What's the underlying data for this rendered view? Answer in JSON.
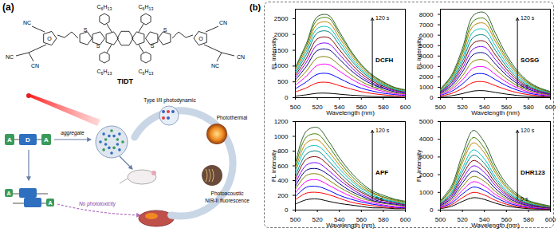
{
  "panel_a": {
    "label": "(a)",
    "molecule": {
      "name": "TIDT",
      "side_chains": [
        "C6H13",
        "C6H13",
        "C6H13",
        "C6H13"
      ],
      "heteroatoms": [
        "S",
        "S",
        "S",
        "S"
      ],
      "left_end_group": [
        "NC",
        "NC",
        "CN",
        "O"
      ],
      "right_end_group": [
        "CN",
        "CN",
        "NC",
        "O"
      ]
    },
    "schematic": {
      "therapies": [
        "Type I/II photodynamic",
        "Photothermal",
        "Photoacoustic",
        "NIR-II fluorescence"
      ],
      "monomer": [
        "A",
        "D",
        "A"
      ],
      "dimer": [
        "A",
        "A"
      ],
      "assembly": "aggregate",
      "safety": "No phototoxicity"
    }
  },
  "panel_b": {
    "label": "(b)"
  },
  "chart_data": [
    {
      "type": "line",
      "title": "DCFH",
      "x_label": "Wavelength (nm)",
      "y_label": "FL intensity",
      "annotations": [
        "0 s",
        "120 s"
      ],
      "x": [
        500,
        510,
        520,
        530,
        540,
        550,
        560,
        570,
        580,
        590,
        600
      ],
      "xlim": [
        500,
        600
      ],
      "xticks": [
        500,
        520,
        540,
        560,
        580,
        600
      ],
      "ylim": [
        0,
        2800
      ],
      "yticks": [
        0,
        500,
        1000,
        1500,
        2000,
        2500
      ],
      "series": [
        {
          "color": "#000000",
          "values": [
            50,
            90,
            140,
            140,
            110,
            80,
            60,
            40,
            30,
            20,
            10
          ]
        },
        {
          "color": "#ff0000",
          "values": [
            180,
            310,
            470,
            480,
            380,
            280,
            190,
            130,
            90,
            60,
            50
          ]
        },
        {
          "color": "#0000ff",
          "values": [
            280,
            500,
            740,
            760,
            610,
            440,
            300,
            210,
            140,
            100,
            70
          ]
        },
        {
          "color": "#ff00ff",
          "values": [
            390,
            680,
            1020,
            1050,
            840,
            610,
            420,
            290,
            200,
            130,
            100
          ]
        },
        {
          "color": "#808000",
          "values": [
            470,
            840,
            1260,
            1280,
            1030,
            740,
            510,
            350,
            240,
            160,
            120
          ]
        },
        {
          "color": "#000080",
          "values": [
            560,
            990,
            1490,
            1520,
            1220,
            880,
            610,
            420,
            290,
            190,
            140
          ]
        },
        {
          "color": "#8000ff",
          "values": [
            630,
            1120,
            1670,
            1710,
            1370,
            990,
            680,
            470,
            320,
            220,
            160
          ]
        },
        {
          "color": "#800000",
          "values": [
            700,
            1240,
            1860,
            1900,
            1520,
            1100,
            760,
            520,
            360,
            240,
            180
          ]
        },
        {
          "color": "#008080",
          "values": [
            770,
            1360,
            2050,
            2090,
            1670,
            1210,
            840,
            570,
            400,
            260,
            200
          ]
        },
        {
          "color": "#00c0c0",
          "values": [
            820,
            1460,
            2190,
            2230,
            1790,
            1290,
            890,
            610,
            420,
            280,
            210
          ]
        },
        {
          "color": "#c08000",
          "values": [
            880,
            1550,
            2330,
            2380,
            1900,
            1380,
            950,
            650,
            450,
            300,
            230
          ]
        },
        {
          "color": "#408000",
          "values": [
            930,
            1640,
            2460,
            2520,
            2010,
            1460,
            1010,
            690,
            480,
            320,
            240
          ]
        },
        {
          "color": "#306030",
          "values": [
            960,
            1710,
            2560,
            2610,
            2090,
            1510,
            1050,
            720,
            500,
            330,
            250
          ]
        }
      ]
    },
    {
      "type": "line",
      "title": "SOSG",
      "x_label": "Wavelength (nm)",
      "y_label": "FL intensity",
      "annotations": [
        "0 s",
        "120 s"
      ],
      "x": [
        500,
        510,
        520,
        530,
        540,
        550,
        560,
        570,
        580,
        590,
        600
      ],
      "xlim": [
        500,
        600
      ],
      "xticks": [
        500,
        520,
        540,
        560,
        580,
        600
      ],
      "ylim": [
        0,
        8500
      ],
      "yticks": [
        0,
        1000,
        2000,
        3000,
        4000,
        5000,
        6000,
        7000,
        8000
      ],
      "series": [
        {
          "color": "#000000",
          "values": [
            70,
            180,
            390,
            640,
            670,
            500,
            340,
            210,
            130,
            80,
            50
          ]
        },
        {
          "color": "#ff0000",
          "values": [
            160,
            400,
            880,
            1470,
            1520,
            1150,
            770,
            480,
            290,
            180,
            110
          ]
        },
        {
          "color": "#0000ff",
          "values": [
            240,
            600,
            1320,
            2210,
            2280,
            1730,
            1150,
            720,
            430,
            260,
            170
          ]
        },
        {
          "color": "#ff00ff",
          "values": [
            310,
            780,
            1710,
            2850,
            2950,
            2230,
            1490,
            930,
            560,
            340,
            220
          ]
        },
        {
          "color": "#808000",
          "values": [
            380,
            950,
            2090,
            3500,
            3610,
            2740,
            1820,
            1140,
            680,
            420,
            270
          ]
        },
        {
          "color": "#000080",
          "values": [
            450,
            1130,
            2480,
            4140,
            4280,
            3240,
            2160,
            1350,
            810,
            500,
            320
          ]
        },
        {
          "color": "#8000ff",
          "values": [
            510,
            1280,
            2810,
            4690,
            4850,
            3670,
            2450,
            1530,
            920,
            560,
            360
          ]
        },
        {
          "color": "#800000",
          "values": [
            570,
            1430,
            3140,
            5240,
            5420,
            4100,
            2740,
            1710,
            1030,
            630,
            400
          ]
        },
        {
          "color": "#008080",
          "values": [
            630,
            1580,
            3470,
            5800,
            5990,
            4540,
            3020,
            1890,
            1130,
            690,
            440
          ]
        },
        {
          "color": "#00c0c0",
          "values": [
            690,
            1730,
            3800,
            6350,
            6560,
            4970,
            3310,
            2070,
            1240,
            760,
            480
          ]
        },
        {
          "color": "#c08000",
          "values": [
            750,
            1880,
            4130,
            6900,
            7130,
            5400,
            3600,
            2250,
            1350,
            830,
            530
          ]
        },
        {
          "color": "#408000",
          "values": [
            800,
            2000,
            4400,
            7360,
            7600,
            5760,
            3840,
            2400,
            1440,
            880,
            560
          ]
        },
        {
          "color": "#306030",
          "values": [
            860,
            2150,
            4730,
            7910,
            8170,
            6190,
            4130,
            2580,
            1550,
            950,
            600
          ]
        }
      ]
    },
    {
      "type": "line",
      "title": "APF",
      "x_label": "Wavelength (nm)",
      "y_label": "FL intensity",
      "annotations": [
        "0 s",
        "120 s"
      ],
      "x": [
        500,
        510,
        520,
        530,
        540,
        550,
        560,
        570,
        580,
        590,
        600
      ],
      "xlim": [
        500,
        600
      ],
      "xticks": [
        500,
        520,
        540,
        560,
        580,
        600
      ],
      "ylim": [
        0,
        1200
      ],
      "yticks": [
        0,
        200,
        400,
        600,
        800,
        1000,
        1200
      ],
      "series": [
        {
          "color": "#000000",
          "values": [
            80,
            140,
            150,
            120,
            90,
            70,
            50,
            30,
            30,
            20,
            20
          ]
        },
        {
          "color": "#ff0000",
          "values": [
            140,
            230,
            240,
            210,
            160,
            110,
            80,
            60,
            40,
            30,
            30
          ]
        },
        {
          "color": "#0000ff",
          "values": [
            180,
            310,
            320,
            270,
            200,
            150,
            110,
            80,
            60,
            40,
            30
          ]
        },
        {
          "color": "#ff00ff",
          "values": [
            230,
            390,
            410,
            340,
            260,
            190,
            130,
            100,
            70,
            50,
            40
          ]
        },
        {
          "color": "#808000",
          "values": [
            280,
            470,
            490,
            410,
            310,
            230,
            160,
            120,
            90,
            70,
            50
          ]
        },
        {
          "color": "#000080",
          "values": [
            320,
            540,
            560,
            480,
            360,
            260,
            190,
            130,
            100,
            80,
            60
          ]
        },
        {
          "color": "#8000ff",
          "values": [
            360,
            610,
            640,
            540,
            410,
            300,
            210,
            150,
            110,
            90,
            70
          ]
        },
        {
          "color": "#800000",
          "values": [
            410,
            690,
            720,
            610,
            460,
            330,
            240,
            170,
            130,
            100,
            70
          ]
        },
        {
          "color": "#008080",
          "values": [
            450,
            760,
            800,
            670,
            510,
            370,
            260,
            190,
            140,
            110,
            80
          ]
        },
        {
          "color": "#00c0c0",
          "values": [
            500,
            840,
            870,
            740,
            560,
            410,
            290,
            210,
            150,
            120,
            90
          ]
        },
        {
          "color": "#c08000",
          "values": [
            540,
            910,
            950,
            800,
            610,
            440,
            310,
            230,
            170,
            130,
            100
          ]
        },
        {
          "color": "#408000",
          "values": [
            580,
            990,
            1030,
            870,
            660,
            480,
            340,
            240,
            180,
            140,
            110
          ]
        },
        {
          "color": "#306030",
          "values": [
            630,
            1070,
            1120,
            940,
            710,
            520,
            370,
            260,
            200,
            150,
            120
          ]
        }
      ]
    },
    {
      "type": "line",
      "title": "DHR123",
      "x_label": "Wavelength (nm)",
      "y_label": "FL intensity",
      "annotations": [
        "0 s",
        "120 s"
      ],
      "x": [
        500,
        510,
        520,
        530,
        540,
        550,
        560,
        570,
        580,
        590,
        600
      ],
      "xlim": [
        500,
        600
      ],
      "xticks": [
        500,
        520,
        540,
        560,
        580,
        600
      ],
      "ylim": [
        0,
        5000
      ],
      "yticks": [
        0,
        1000,
        2000,
        3000,
        4000,
        5000
      ],
      "series": [
        {
          "color": "#000000",
          "values": [
            80,
            210,
            490,
            700,
            600,
            390,
            230,
            140,
            80,
            60,
            40
          ]
        },
        {
          "color": "#ff0000",
          "values": [
            120,
            300,
            700,
            1000,
            850,
            550,
            330,
            200,
            120,
            80,
            50
          ]
        },
        {
          "color": "#0000ff",
          "values": [
            160,
            390,
            910,
            1300,
            1110,
            720,
            430,
            260,
            160,
            100,
            70
          ]
        },
        {
          "color": "#ff00ff",
          "values": [
            190,
            480,
            1120,
            1600,
            1360,
            880,
            530,
            320,
            190,
            130,
            80
          ]
        },
        {
          "color": "#808000",
          "values": [
            230,
            570,
            1330,
            1900,
            1620,
            1050,
            630,
            380,
            230,
            150,
            100
          ]
        },
        {
          "color": "#000080",
          "values": [
            260,
            660,
            1540,
            2200,
            1870,
            1210,
            730,
            440,
            260,
            180,
            110
          ]
        },
        {
          "color": "#8000ff",
          "values": [
            300,
            750,
            1750,
            2500,
            2130,
            1380,
            830,
            500,
            300,
            200,
            130
          ]
        },
        {
          "color": "#800000",
          "values": [
            340,
            840,
            1960,
            2800,
            2380,
            1540,
            920,
            560,
            340,
            220,
            140
          ]
        },
        {
          "color": "#008080",
          "values": [
            370,
            930,
            2170,
            3100,
            2640,
            1710,
            1020,
            620,
            370,
            250,
            160
          ]
        },
        {
          "color": "#00c0c0",
          "values": [
            410,
            1020,
            2380,
            3400,
            2890,
            1870,
            1120,
            680,
            410,
            270,
            170
          ]
        },
        {
          "color": "#c08000",
          "values": [
            460,
            1140,
            2660,
            3800,
            3230,
            2090,
            1250,
            760,
            460,
            300,
            190
          ]
        },
        {
          "color": "#408000",
          "values": [
            490,
            1230,
            2870,
            4100,
            3490,
            2260,
            1350,
            820,
            490,
            330,
            210
          ]
        },
        {
          "color": "#306030",
          "values": [
            540,
            1350,
            3150,
            4500,
            3830,
            2480,
            1490,
            900,
            540,
            360,
            230
          ]
        }
      ]
    }
  ]
}
